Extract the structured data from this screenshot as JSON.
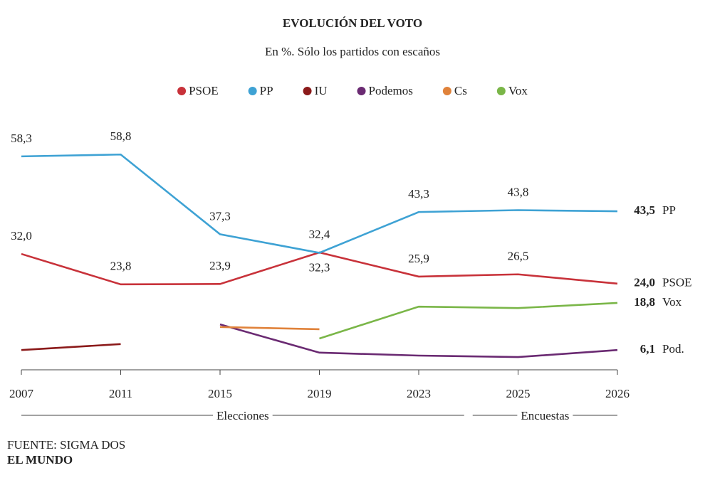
{
  "chart_data": {
    "type": "line",
    "title": "EVOLUCIÓN DEL VOTO",
    "subtitle": "En %. Sólo los partidos con escaños",
    "categories": [
      "2007",
      "2011",
      "2015",
      "2019",
      "2023",
      "2025",
      "2026"
    ],
    "x_groups": [
      {
        "label": "Elecciones",
        "count": 5
      },
      {
        "label": "Encuestas",
        "count": 2
      }
    ],
    "ylim": [
      0,
      60
    ],
    "grid": false,
    "series": [
      {
        "name": "PSOE",
        "color": "#c8323a",
        "end_label": "PSOE",
        "values": [
          32.0,
          23.8,
          23.9,
          32.4,
          25.9,
          26.5,
          24.0
        ],
        "value_labels": [
          "32,0",
          "23,8",
          "23,9",
          "32,4",
          "25,9",
          "26,5",
          "24,0"
        ]
      },
      {
        "name": "PP",
        "color": "#3ea2d4",
        "end_label": "PP",
        "values": [
          58.3,
          58.8,
          37.3,
          32.3,
          43.3,
          43.8,
          43.5
        ],
        "value_labels": [
          "58,3",
          "58,8",
          "37,3",
          "32,3",
          "43,3",
          "43,8",
          "43,5"
        ]
      },
      {
        "name": "IU",
        "color": "#8b1a1a",
        "values": [
          6.1,
          7.7,
          null,
          null,
          null,
          null,
          null
        ]
      },
      {
        "name": "Podemos",
        "color": "#6a2a72",
        "end_label": "Pod.",
        "values": [
          null,
          null,
          13.0,
          5.4,
          4.6,
          4.2,
          6.1
        ],
        "value_labels": [
          null,
          null,
          null,
          null,
          null,
          null,
          "6,1"
        ]
      },
      {
        "name": "Cs",
        "color": "#e0823a",
        "values": [
          null,
          null,
          12.3,
          11.7,
          null,
          null,
          null
        ]
      },
      {
        "name": "Vox",
        "color": "#7ab648",
        "end_label": "Vox",
        "values": [
          null,
          null,
          null,
          9.2,
          17.8,
          17.4,
          18.8
        ],
        "value_labels": [
          null,
          null,
          null,
          null,
          null,
          null,
          "18,8"
        ]
      }
    ]
  },
  "source": "FUENTE: SIGMA DOS",
  "brand": "EL MUNDO"
}
